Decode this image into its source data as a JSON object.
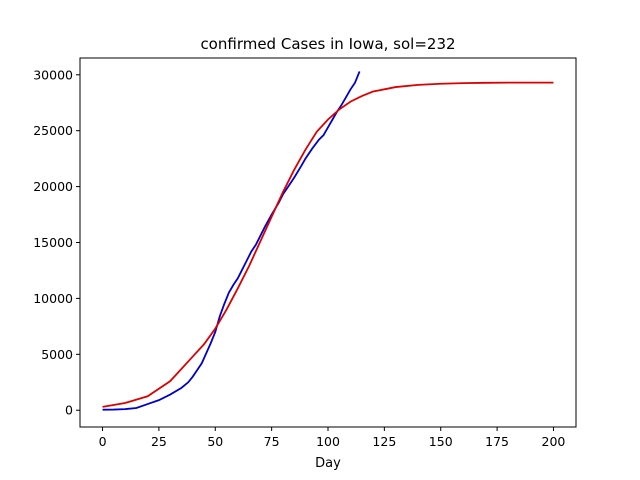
{
  "chart_data": {
    "type": "line",
    "title": "confirmed Cases in Iowa, sol=232",
    "xlabel": "Day",
    "ylabel": "",
    "xlim": [
      -10,
      210
    ],
    "ylim": [
      -1500,
      31500
    ],
    "xticks": [
      0,
      25,
      50,
      75,
      100,
      125,
      150,
      175,
      200
    ],
    "yticks": [
      0,
      5000,
      10000,
      15000,
      20000,
      25000,
      30000
    ],
    "grid": false,
    "series": [
      {
        "color": "#0000cc",
        "x": [
          0,
          5,
          10,
          15,
          20,
          25,
          30,
          35,
          38,
          40,
          42,
          44,
          46,
          48,
          50,
          52,
          54,
          56,
          58,
          60,
          62,
          64,
          66,
          68,
          70,
          72,
          75,
          78,
          80,
          82,
          85,
          88,
          90,
          93,
          96,
          98,
          100,
          102,
          104,
          106,
          108,
          110,
          112,
          114
        ],
        "y": [
          50,
          60,
          100,
          200,
          550,
          900,
          1400,
          2000,
          2500,
          3000,
          3600,
          4200,
          5100,
          6000,
          7000,
          8400,
          9500,
          10500,
          11200,
          11800,
          12600,
          13400,
          14200,
          14800,
          15600,
          16400,
          17500,
          18500,
          19300,
          19900,
          20800,
          21800,
          22500,
          23400,
          24200,
          24600,
          25300,
          26000,
          26700,
          27300,
          28000,
          28700,
          29300,
          30300
        ]
      },
      {
        "color": "#dd0000",
        "x": [
          0,
          10,
          20,
          30,
          40,
          45,
          50,
          55,
          60,
          65,
          70,
          75,
          80,
          85,
          90,
          95,
          100,
          105,
          110,
          115,
          120,
          125,
          130,
          140,
          150,
          160,
          170,
          180,
          190,
          200
        ],
        "y": [
          300,
          650,
          1250,
          2600,
          4800,
          5900,
          7300,
          9000,
          10900,
          12900,
          15100,
          17300,
          19500,
          21500,
          23300,
          24900,
          26000,
          26900,
          27600,
          28100,
          28500,
          28700,
          28900,
          29100,
          29200,
          29250,
          29280,
          29300,
          29300,
          29300
        ]
      }
    ]
  }
}
